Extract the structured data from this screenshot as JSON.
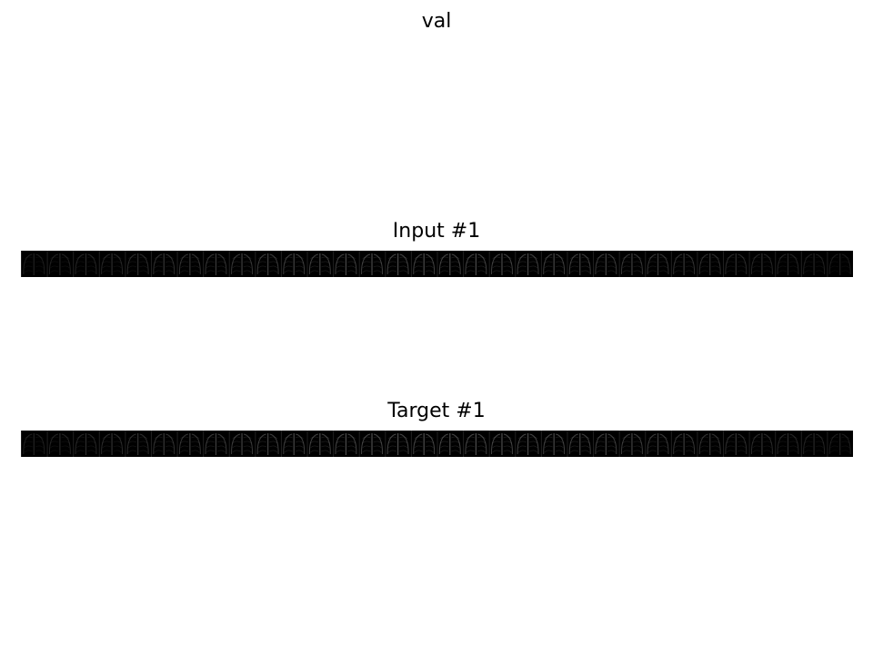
{
  "figure": {
    "title": "val"
  },
  "panels": [
    {
      "title": "Input #1",
      "image": "xray-strip-image"
    },
    {
      "title": "Target #1",
      "image": "xray-strip-image"
    }
  ],
  "colors": {
    "background": "#ffffff",
    "image_background": "#000000",
    "image_highlight": "#8a8a8a"
  }
}
